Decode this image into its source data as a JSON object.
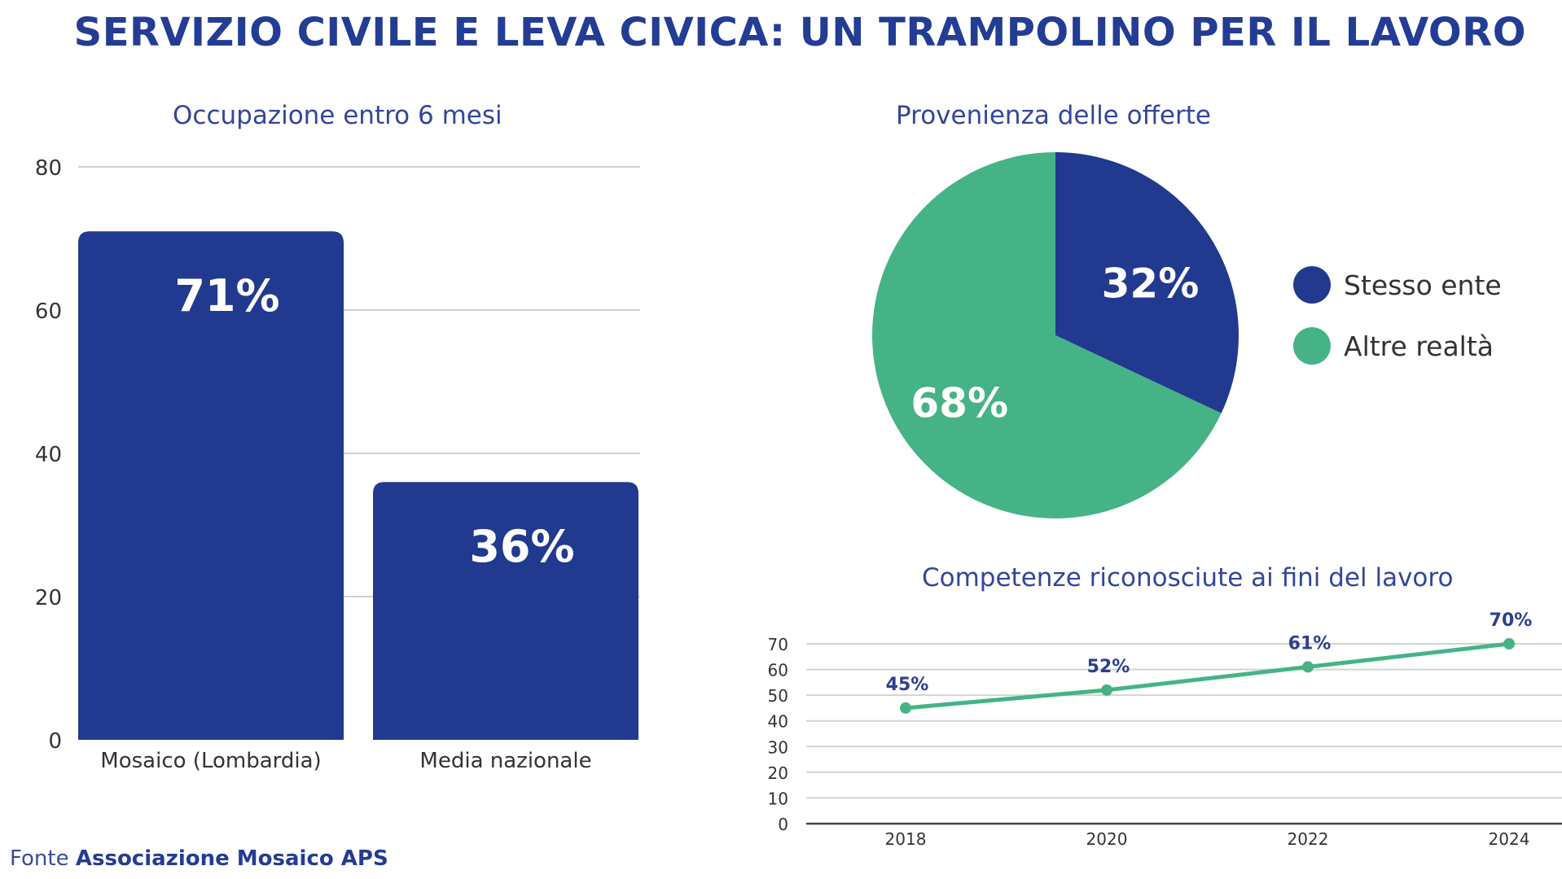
{
  "title": "SERVIZIO CIVILE E LEVA CIVICA: UN TRAMPOLINO PER IL LAVORO",
  "source": {
    "prefix": "Fonte",
    "name": "Associazione Mosaico APS"
  },
  "colors": {
    "navy": "#213a8f",
    "green": "#45b386",
    "title": "#233c94"
  },
  "chart_data": [
    {
      "type": "bar",
      "title": "Occupazione entro 6 mesi",
      "categories": [
        "Mosaico (Lombardia)",
        "Media nazionale"
      ],
      "values": [
        71,
        36
      ],
      "data_labels": [
        "71%",
        "36%"
      ],
      "ylim": [
        0,
        80
      ],
      "yticks": [
        0,
        20,
        40,
        60,
        80
      ],
      "grid": true
    },
    {
      "type": "pie",
      "title": "Provenienza delle offerte",
      "labels": [
        "Stesso ente",
        "Altre realtà"
      ],
      "values": [
        32,
        68
      ],
      "data_labels": [
        "32%",
        "68%"
      ],
      "legend": "right"
    },
    {
      "type": "line",
      "title": "Competenze riconosciute ai fini del lavoro",
      "x": [
        "2018",
        "2020",
        "2022",
        "2024"
      ],
      "values": [
        45,
        52,
        61,
        70
      ],
      "data_labels": [
        "45%",
        "52%",
        "61%",
        "70%"
      ],
      "ylim": [
        0,
        70
      ],
      "yticks": [
        0,
        10,
        20,
        30,
        40,
        50,
        60,
        70
      ],
      "grid": true
    }
  ]
}
